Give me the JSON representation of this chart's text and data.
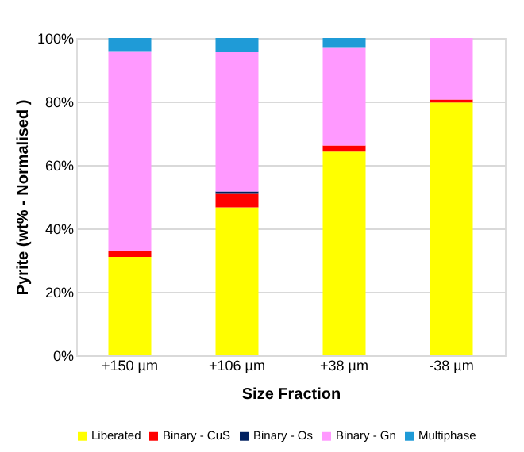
{
  "chart_data": {
    "type": "bar",
    "stacked": true,
    "xlabel": "Size Fraction",
    "ylabel": "Pyrite (wt% - Normalised )",
    "categories": [
      "+150 µm",
      "+106 µm",
      "+38 µm",
      "-38 µm"
    ],
    "series": [
      {
        "name": "Liberated",
        "color": "#ffff00",
        "values": [
          31,
          46.6,
          64.2,
          79.7
        ]
      },
      {
        "name": "Binary - CuS",
        "color": "#ff0000",
        "values": [
          1.8,
          4.3,
          1.9,
          0.9
        ]
      },
      {
        "name": "Binary - Os",
        "color": "#002060",
        "values": [
          0,
          0.7,
          0,
          0
        ]
      },
      {
        "name": "Binary - Gn",
        "color": "#ff99ff",
        "values": [
          63.1,
          43.9,
          31,
          19.4
        ]
      },
      {
        "name": "Multiphase",
        "color": "#1f9bd7",
        "values": [
          4.1,
          4.5,
          2.9,
          0
        ]
      }
    ],
    "ylim": [
      0,
      100
    ],
    "yticks": [
      {
        "value": 0,
        "label": "0%"
      },
      {
        "value": 20,
        "label": "20%"
      },
      {
        "value": 40,
        "label": "40%"
      },
      {
        "value": 60,
        "label": "60%"
      },
      {
        "value": 80,
        "label": "80%"
      },
      {
        "value": 100,
        "label": "100%"
      }
    ],
    "grid": "y",
    "legend": "bottom"
  }
}
